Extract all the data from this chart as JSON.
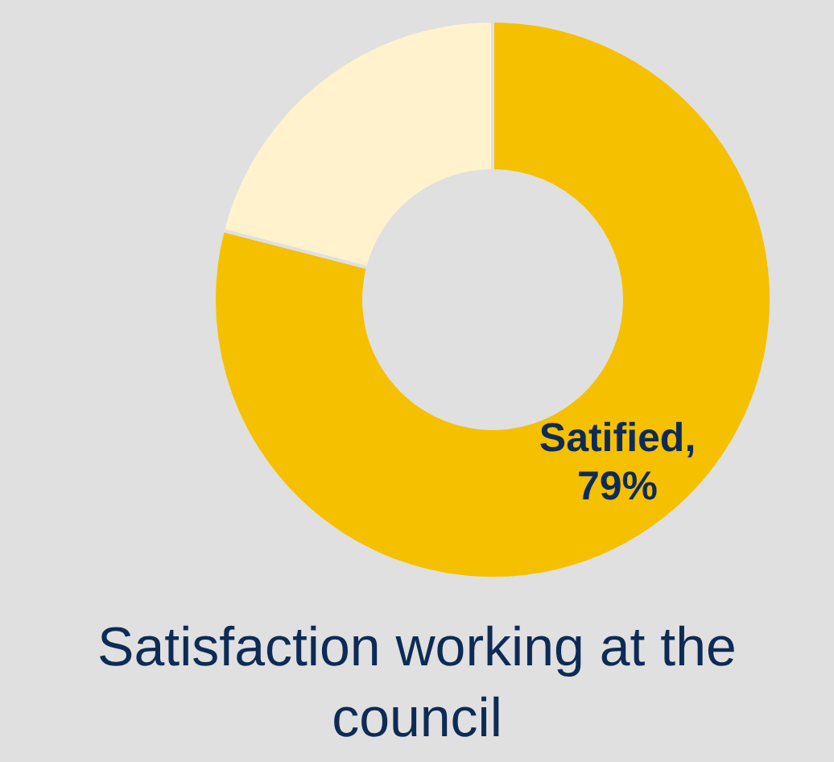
{
  "chart_data": {
    "type": "donut",
    "title": "Satisfaction working at the council",
    "categories": [
      null,
      null
    ],
    "values": [
      79,
      21
    ],
    "colors": [
      "#f5c000",
      "#fff2cc"
    ],
    "value_labels": [
      "Satified, 79%",
      null
    ]
  }
}
